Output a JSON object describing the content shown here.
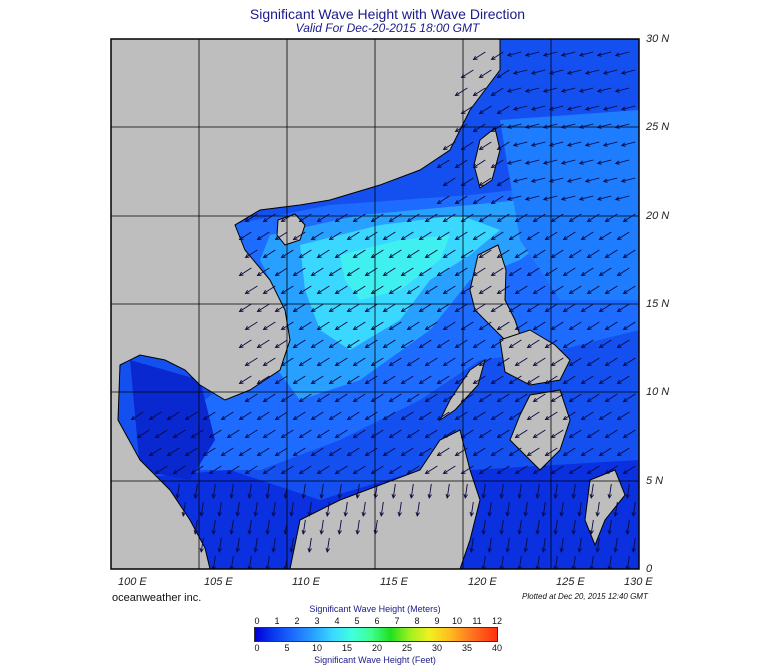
{
  "title": "Significant Wave Height with Wave Direction",
  "subtitle": "Valid For Dec-20-2015 18:00 GMT",
  "lat_labels": [
    "30 N",
    "25 N",
    "20 N",
    "15 N",
    "10 N",
    "5 N",
    "0"
  ],
  "lon_labels": [
    "100 E",
    "105 E",
    "110 E",
    "115 E",
    "120 E",
    "125 E",
    "130 E"
  ],
  "brand": "oceanweather inc.",
  "plotted_at": "Plotted at Dec 20, 2015 12:40 GMT",
  "colorbar": {
    "title_meters": "Significant Wave Height (Meters)",
    "title_feet": "Significant Wave Height (Feet)",
    "ticks_meters": [
      "0",
      "1",
      "2",
      "3",
      "4",
      "5",
      "6",
      "7",
      "8",
      "9",
      "10",
      "11",
      "12"
    ],
    "ticks_feet": [
      "0",
      "5",
      "10",
      "15",
      "20",
      "25",
      "30",
      "35",
      "40"
    ]
  },
  "colors": {
    "land": "#bebebe",
    "deep_blue": "#0a28d8",
    "mid_blue": "#1e6cff",
    "cyan": "#3ad8ff",
    "aqua": "#40f0f0"
  }
}
